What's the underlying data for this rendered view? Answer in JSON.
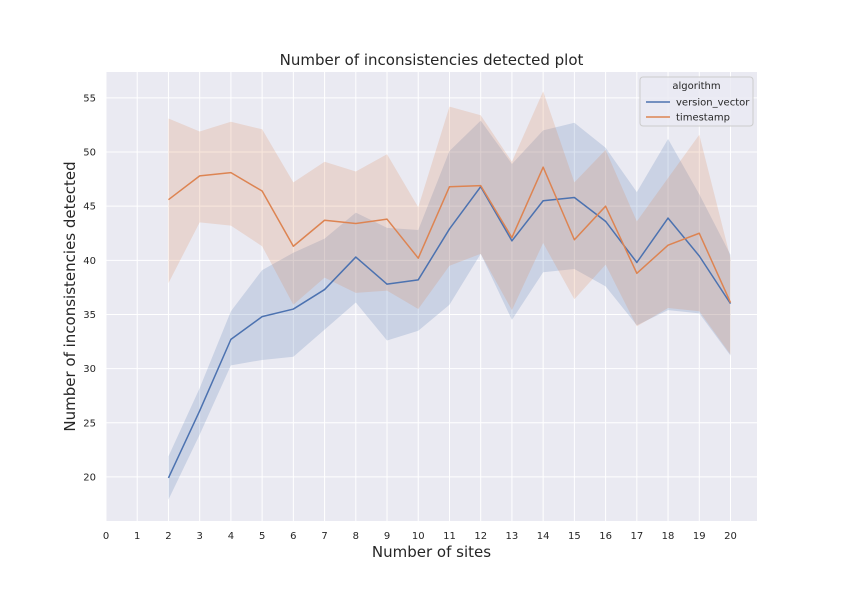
{
  "chart_data": {
    "type": "line",
    "title": "Number of inconsistencies detected plot",
    "xlabel": "Number of sites",
    "ylabel": "Number of inconsistencies detected",
    "xlim": [
      0,
      20
    ],
    "ylim": [
      15,
      58
    ],
    "xticks": [
      "0",
      "1",
      "2",
      "3",
      "4",
      "5",
      "6",
      "7",
      "8",
      "9",
      "10",
      "11",
      "12",
      "13",
      "14",
      "15",
      "16",
      "17",
      "18",
      "19",
      "20"
    ],
    "yticks": [
      "20",
      "25",
      "30",
      "35",
      "40",
      "45",
      "50",
      "55"
    ],
    "grid": true,
    "legend": {
      "title": "algorithm",
      "placement": "top-right"
    },
    "x": [
      2,
      3,
      4,
      5,
      6,
      7,
      8,
      9,
      10,
      11,
      12,
      13,
      14,
      15,
      16,
      17,
      18,
      19,
      20
    ],
    "series": [
      {
        "name": "version_vector",
        "color": "#4c72b0",
        "values": [
          19.9,
          26.1,
          32.7,
          34.8,
          35.5,
          37.3,
          40.3,
          37.8,
          38.2,
          42.9,
          46.8,
          41.8,
          45.5,
          45.8,
          43.6,
          39.8,
          43.9,
          40.4,
          36.0
        ],
        "ci_low": [
          17.9,
          23.9,
          30.3,
          30.8,
          31.1,
          33.6,
          36.1,
          32.6,
          33.5,
          35.9,
          40.6,
          34.5,
          38.9,
          39.2,
          37.6,
          34.0,
          35.4,
          35.1,
          31.2
        ],
        "ci_high": [
          21.9,
          28.2,
          35.3,
          39.1,
          40.7,
          42.0,
          44.4,
          43.0,
          42.8,
          50.1,
          52.9,
          48.9,
          52.0,
          52.7,
          50.4,
          46.3,
          51.2,
          46.1,
          40.5
        ]
      },
      {
        "name": "timestamp",
        "color": "#dd8452",
        "values": [
          45.6,
          47.8,
          48.1,
          46.4,
          41.3,
          43.7,
          43.4,
          43.8,
          40.2,
          46.8,
          46.9,
          42.1,
          48.6,
          41.9,
          45.0,
          38.8,
          41.4,
          42.5,
          36.1
        ],
        "ci_low": [
          37.9,
          43.5,
          43.2,
          41.3,
          35.9,
          38.4,
          37.0,
          37.2,
          35.5,
          39.5,
          40.6,
          35.4,
          41.6,
          36.4,
          39.6,
          33.9,
          35.6,
          35.3,
          31.3
        ],
        "ci_high": [
          53.1,
          51.9,
          52.8,
          52.1,
          47.2,
          49.1,
          48.2,
          49.8,
          44.9,
          54.2,
          53.4,
          49.1,
          55.6,
          47.2,
          50.2,
          43.6,
          47.6,
          51.6,
          40.2
        ]
      }
    ]
  }
}
